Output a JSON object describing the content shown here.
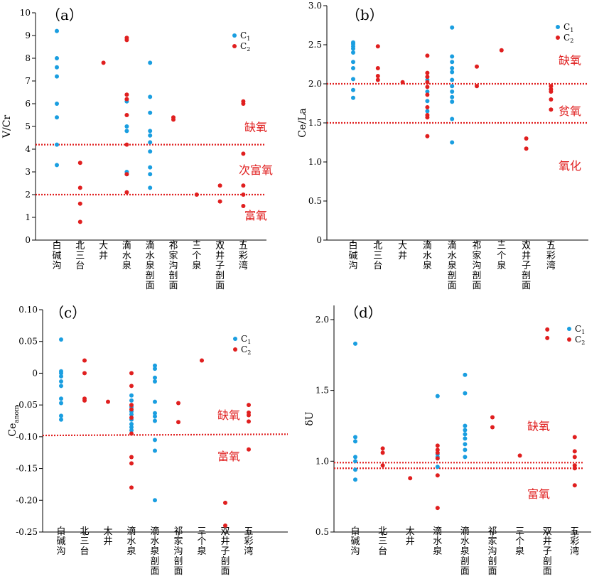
{
  "colors": {
    "C1": "#1a9ee0",
    "C2": "#e01f1f",
    "threshold": "#e01f1f",
    "zone_text": "#e01f1f"
  },
  "legend": {
    "c1_main": "C",
    "c1_sub": "1",
    "c2_main": "C",
    "c2_sub": "2"
  },
  "categories": [
    "白碱沟",
    "北三台",
    "大井",
    "滴水泉",
    "滴水泉剖面",
    "祁家沟剖面",
    "三个泉",
    "双井子剖面",
    "五彩湾"
  ],
  "chart_data": [
    {
      "type": "scatter",
      "panel": "（a）",
      "ylabel": "V/Cr",
      "ylim": [
        0,
        10
      ],
      "yticks": [
        0,
        1,
        2,
        3,
        4,
        5,
        6,
        7,
        8,
        9,
        10
      ],
      "ytick_labels": [
        "0",
        "1",
        "2",
        "3",
        "4",
        "5",
        "6",
        "7",
        "8",
        "9",
        "10"
      ],
      "categories": [
        "白碱沟",
        "北三台",
        "大井",
        "滴水泉",
        "滴水泉剖面",
        "祁家沟剖面",
        "三个泉",
        "双井子剖面",
        "五彩湾"
      ],
      "thresholds": [
        4.2,
        2.0
      ],
      "zones": [
        {
          "label": "缺氧",
          "y": 4.8
        },
        {
          "label": "次富氧",
          "y": 2.9
        },
        {
          "label": "富氧",
          "y": 0.9
        }
      ],
      "series": [
        {
          "name": "C1",
          "points": [
            [
              0,
              9.2
            ],
            [
              0,
              8.0
            ],
            [
              0,
              7.6
            ],
            [
              0,
              7.2
            ],
            [
              0,
              6.0
            ],
            [
              0,
              5.4
            ],
            [
              0,
              4.2
            ],
            [
              0,
              3.3
            ],
            [
              3,
              6.1
            ],
            [
              3,
              5.0
            ],
            [
              3,
              4.8
            ],
            [
              3,
              3.0
            ],
            [
              3,
              2.9
            ],
            [
              4,
              7.8
            ],
            [
              4,
              6.3
            ],
            [
              4,
              5.6
            ],
            [
              4,
              4.8
            ],
            [
              4,
              4.6
            ],
            [
              4,
              4.3
            ],
            [
              4,
              3.9
            ],
            [
              4,
              3.2
            ],
            [
              4,
              2.9
            ],
            [
              4,
              2.3
            ]
          ]
        },
        {
          "name": "C2",
          "points": [
            [
              1,
              3.4
            ],
            [
              1,
              2.3
            ],
            [
              1,
              1.6
            ],
            [
              1,
              0.8
            ],
            [
              2,
              7.8
            ],
            [
              3,
              8.9
            ],
            [
              3,
              8.8
            ],
            [
              3,
              6.4
            ],
            [
              3,
              6.2
            ],
            [
              3,
              5.5
            ],
            [
              3,
              4.2
            ],
            [
              3,
              2.9
            ],
            [
              3,
              2.1
            ],
            [
              5,
              5.4
            ],
            [
              5,
              5.3
            ],
            [
              6,
              2.0
            ],
            [
              7,
              2.4
            ],
            [
              7,
              1.7
            ],
            [
              8,
              6.1
            ],
            [
              8,
              6.0
            ],
            [
              8,
              3.8
            ],
            [
              8,
              2.4
            ],
            [
              8,
              2.0
            ],
            [
              8,
              1.5
            ]
          ]
        }
      ]
    },
    {
      "type": "scatter",
      "panel": "（b）",
      "ylabel": "Ce/La",
      "ylim": [
        0,
        3.0
      ],
      "yticks": [
        0,
        0.5,
        1.0,
        1.5,
        2.0,
        2.5,
        3.0
      ],
      "ytick_labels": [
        "0",
        "0.5",
        "1.0",
        "1.5",
        "2.0",
        "2.5",
        "3.0"
      ],
      "categories": [
        "白碱沟",
        "北三台",
        "大井",
        "滴水泉",
        "滴水泉剖面",
        "祁家沟剖面",
        "三个泉",
        "双井子剖面",
        "五彩湾"
      ],
      "thresholds": [
        2.0,
        1.5
      ],
      "zones": [
        {
          "label": "缺氧",
          "y": 2.25
        },
        {
          "label": "贫氧",
          "y": 1.6
        },
        {
          "label": "氧化",
          "y": 0.9
        }
      ],
      "series": [
        {
          "name": "C1",
          "points": [
            [
              0,
              2.53
            ],
            [
              0,
              2.51
            ],
            [
              0,
              2.48
            ],
            [
              0,
              2.45
            ],
            [
              0,
              2.4
            ],
            [
              0,
              2.28
            ],
            [
              0,
              2.2
            ],
            [
              0,
              2.06
            ],
            [
              0,
              1.92
            ],
            [
              0,
              1.82
            ],
            [
              3,
              2.05
            ],
            [
              3,
              1.9
            ],
            [
              3,
              1.78
            ],
            [
              3,
              1.65
            ],
            [
              4,
              2.72
            ],
            [
              4,
              2.35
            ],
            [
              4,
              2.28
            ],
            [
              4,
              2.2
            ],
            [
              4,
              2.15
            ],
            [
              4,
              2.05
            ],
            [
              4,
              1.97
            ],
            [
              4,
              1.9
            ],
            [
              4,
              1.83
            ],
            [
              4,
              1.77
            ],
            [
              4,
              1.55
            ],
            [
              4,
              1.25
            ]
          ]
        },
        {
          "name": "C2",
          "points": [
            [
              1,
              2.48
            ],
            [
              1,
              2.2
            ],
            [
              1,
              2.1
            ],
            [
              1,
              2.05
            ],
            [
              2,
              2.02
            ],
            [
              3,
              2.36
            ],
            [
              3,
              2.14
            ],
            [
              3,
              2.09
            ],
            [
              3,
              2.02
            ],
            [
              3,
              1.96
            ],
            [
              3,
              1.86
            ],
            [
              3,
              1.7
            ],
            [
              3,
              1.6
            ],
            [
              3,
              1.57
            ],
            [
              3,
              1.33
            ],
            [
              5,
              2.22
            ],
            [
              5,
              1.97
            ],
            [
              6,
              2.43
            ],
            [
              7,
              1.3
            ],
            [
              7,
              1.17
            ],
            [
              8,
              1.97
            ],
            [
              8,
              1.93
            ],
            [
              8,
              1.9
            ],
            [
              8,
              1.8
            ],
            [
              8,
              1.67
            ]
          ]
        }
      ]
    },
    {
      "type": "scatter",
      "panel": "（c）",
      "ylabel": "Ce",
      "ylabel_sub": "anom",
      "ylim": [
        -0.25,
        0.1
      ],
      "yticks": [
        -0.25,
        -0.2,
        -0.15,
        -0.1,
        -0.05,
        0,
        0.05,
        0.1
      ],
      "ytick_labels": [
        "-0.25",
        "-0.20",
        "-0.15",
        "-0.10",
        "-0.05",
        "0",
        "0.05",
        "0.10"
      ],
      "categories": [
        "白碱沟",
        "北三台",
        "大井",
        "滴水泉",
        "滴水泉剖面",
        "祁家沟剖面",
        "三个泉",
        "双井子剖面",
        "五彩湾"
      ],
      "thresholds": [
        -0.098
      ],
      "threshold_slope": 0.002,
      "zones": [
        {
          "label": "缺氧",
          "y": -0.072
        },
        {
          "label": "富氧",
          "y": -0.137
        }
      ],
      "series": [
        {
          "name": "C1",
          "points": [
            [
              0,
              0.053
            ],
            [
              0,
              0.003
            ],
            [
              0,
              0.0
            ],
            [
              0,
              -0.005
            ],
            [
              0,
              -0.013
            ],
            [
              0,
              -0.02
            ],
            [
              0,
              -0.04
            ],
            [
              0,
              -0.047
            ],
            [
              0,
              -0.067
            ],
            [
              0,
              -0.073
            ],
            [
              3,
              -0.035
            ],
            [
              3,
              -0.043
            ],
            [
              3,
              -0.053
            ],
            [
              3,
              -0.06
            ],
            [
              3,
              -0.065
            ],
            [
              3,
              -0.073
            ],
            [
              3,
              -0.08
            ],
            [
              3,
              -0.085
            ],
            [
              3,
              -0.09
            ],
            [
              4,
              0.012
            ],
            [
              4,
              0.007
            ],
            [
              4,
              -0.007
            ],
            [
              4,
              -0.013
            ],
            [
              4,
              -0.045
            ],
            [
              4,
              -0.063
            ],
            [
              4,
              -0.068
            ],
            [
              4,
              -0.075
            ],
            [
              4,
              -0.105
            ],
            [
              4,
              -0.122
            ],
            [
              4,
              -0.2
            ]
          ]
        },
        {
          "name": "C2",
          "points": [
            [
              1,
              0.02
            ],
            [
              1,
              0.0
            ],
            [
              1,
              -0.04
            ],
            [
              1,
              -0.043
            ],
            [
              2,
              -0.045
            ],
            [
              3,
              0.0
            ],
            [
              3,
              -0.02
            ],
            [
              3,
              -0.05
            ],
            [
              3,
              -0.057
            ],
            [
              3,
              -0.07
            ],
            [
              3,
              -0.095
            ],
            [
              3,
              -0.132
            ],
            [
              3,
              -0.142
            ],
            [
              3,
              -0.18
            ],
            [
              5,
              -0.047
            ],
            [
              5,
              -0.077
            ],
            [
              6,
              0.02
            ],
            [
              7,
              -0.204
            ],
            [
              7,
              -0.24
            ],
            [
              8,
              -0.05
            ],
            [
              8,
              -0.062
            ],
            [
              8,
              -0.066
            ],
            [
              8,
              -0.076
            ],
            [
              8,
              -0.12
            ]
          ]
        }
      ]
    },
    {
      "type": "scatter",
      "panel": "（d）",
      "ylabel": "δU",
      "ylim": [
        0.5,
        2.1
      ],
      "yticks": [
        0.5,
        1.0,
        1.5,
        2.0
      ],
      "ytick_labels": [
        "0.5",
        "1.0",
        "1.5",
        "2.0"
      ],
      "categories": [
        "白碱沟",
        "北三台",
        "大井",
        "滴水泉",
        "滴水泉剖面",
        "祁家沟剖面",
        "三个泉",
        "双井子剖面",
        "五彩湾"
      ],
      "thresholds": [
        0.99,
        0.95
      ],
      "zones": [
        {
          "label": "缺氧",
          "y": 1.22
        },
        {
          "label": "富氧",
          "y": 0.74
        }
      ],
      "series": [
        {
          "name": "C1",
          "points": [
            [
              0,
              1.83
            ],
            [
              0,
              1.17
            ],
            [
              0,
              1.14
            ],
            [
              0,
              1.03
            ],
            [
              0,
              1.0
            ],
            [
              0,
              0.94
            ],
            [
              0,
              0.87
            ],
            [
              3,
              1.46
            ],
            [
              3,
              1.05
            ],
            [
              3,
              1.03
            ],
            [
              3,
              0.96
            ],
            [
              4,
              1.61
            ],
            [
              4,
              1.48
            ],
            [
              4,
              1.25
            ],
            [
              4,
              1.22
            ],
            [
              4,
              1.19
            ],
            [
              4,
              1.16
            ],
            [
              4,
              1.12
            ],
            [
              4,
              1.08
            ],
            [
              4,
              1.03
            ]
          ]
        },
        {
          "name": "C2",
          "points": [
            [
              1,
              1.09
            ],
            [
              1,
              1.06
            ],
            [
              1,
              0.97
            ],
            [
              2,
              0.88
            ],
            [
              3,
              1.11
            ],
            [
              3,
              1.08
            ],
            [
              3,
              1.06
            ],
            [
              3,
              1.02
            ],
            [
              3,
              0.9
            ],
            [
              3,
              0.67
            ],
            [
              5,
              1.31
            ],
            [
              5,
              1.24
            ],
            [
              6,
              1.04
            ],
            [
              7,
              1.93
            ],
            [
              7,
              1.87
            ],
            [
              8,
              1.17
            ],
            [
              8,
              1.07
            ],
            [
              8,
              1.03
            ],
            [
              8,
              0.97
            ],
            [
              8,
              0.95
            ],
            [
              8,
              0.83
            ]
          ]
        }
      ]
    }
  ]
}
